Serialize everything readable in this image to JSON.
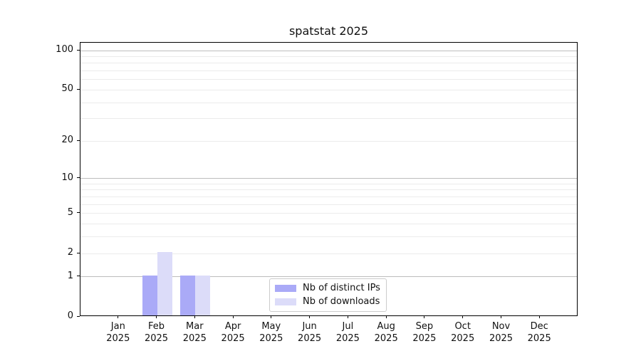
{
  "chart_data": {
    "type": "bar",
    "title": "spatstat 2025",
    "categories": [
      "Jan",
      "Feb",
      "Mar",
      "Apr",
      "May",
      "Jun",
      "Jul",
      "Aug",
      "Sep",
      "Oct",
      "Nov",
      "Dec"
    ],
    "category_year": "2025",
    "series": [
      {
        "name": "Nb of distinct IPs",
        "color": "#aaaaf7",
        "values": [
          0,
          1,
          1,
          0,
          0,
          0,
          0,
          0,
          0,
          0,
          0,
          0
        ]
      },
      {
        "name": "Nb of downloads",
        "color": "#dcdcf9",
        "values": [
          0,
          2,
          1,
          0,
          0,
          0,
          0,
          0,
          0,
          0,
          0,
          0
        ]
      }
    ],
    "xlabel": "",
    "ylabel": "",
    "y_scale": "log1p",
    "y_major_ticks": [
      0,
      1,
      2,
      5,
      10,
      20,
      50,
      100
    ],
    "y_minor_gridlines": [
      3,
      4,
      6,
      7,
      8,
      9,
      30,
      40,
      60,
      70,
      80,
      90
    ],
    "ylim": [
      0,
      114
    ],
    "grid": {
      "decade_lines": [
        1,
        10,
        100
      ],
      "decade_color": "#bdbdbd",
      "minor_color": "#ebebeb"
    },
    "legend": {
      "position": "lower center"
    },
    "colors": {
      "spine": "#000000",
      "text": "#111111",
      "background": "#ffffff"
    }
  }
}
